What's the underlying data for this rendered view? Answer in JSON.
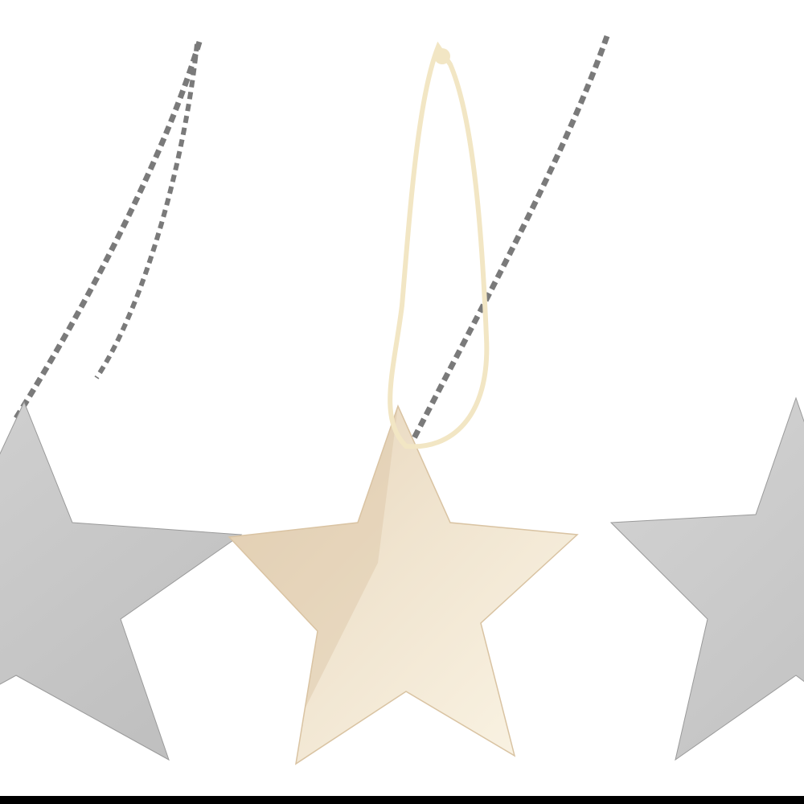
{
  "scene": {
    "subject": "star ornaments",
    "colors": {
      "background": "#ffffff",
      "wood_star": "#f3ead8",
      "wood_star_shade": "#e2cfb4",
      "grey_star": "#c9c9c9",
      "grey_cord": "#7a7a7a",
      "beige_cord": "#f2e6c4",
      "bottom_bar": "#000000"
    }
  }
}
